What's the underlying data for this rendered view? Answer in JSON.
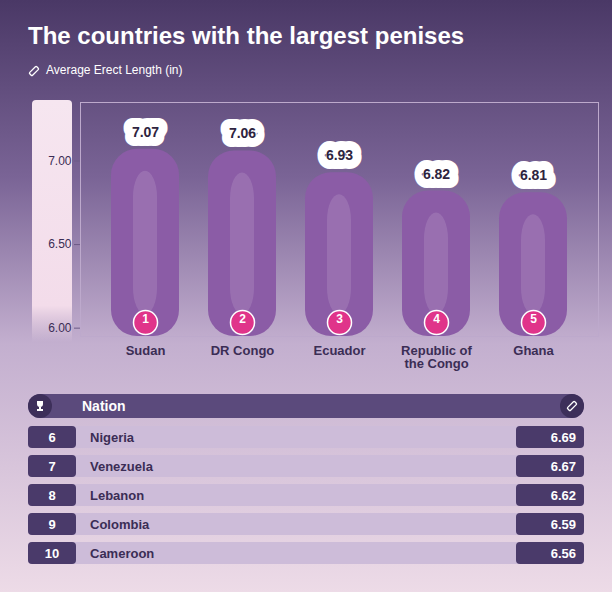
{
  "chart_data": {
    "type": "bar",
    "title": "The countries with the largest penises",
    "subtitle": "Average Erect Length (in)",
    "categories": [
      "Sudan",
      "DR Congo",
      "Ecuador",
      "Republic of the Congo",
      "Ghana"
    ],
    "ranks": [
      1,
      2,
      3,
      4,
      5
    ],
    "values": [
      7.07,
      7.06,
      6.93,
      6.82,
      6.81
    ],
    "color": "#8b5ca6",
    "ylim": [
      5.95,
      7.35
    ],
    "yticks": [
      {
        "value": 6,
        "label": "6.00"
      },
      {
        "value": 6.5,
        "label": "6.50"
      },
      {
        "value": 7,
        "label": "7.00"
      }
    ],
    "data_labels": true,
    "grid": false
  },
  "table": {
    "header": "Nation",
    "rows": [
      {
        "rank": 6,
        "nation": "Nigeria",
        "value": 6.69
      },
      {
        "rank": 7,
        "nation": "Venezuela",
        "value": 6.67
      },
      {
        "rank": 8,
        "nation": "Lebanon",
        "value": 6.62
      },
      {
        "rank": 9,
        "nation": "Colombia",
        "value": 6.59
      },
      {
        "rank": 10,
        "nation": "Cameroon",
        "value": 6.56
      }
    ]
  }
}
